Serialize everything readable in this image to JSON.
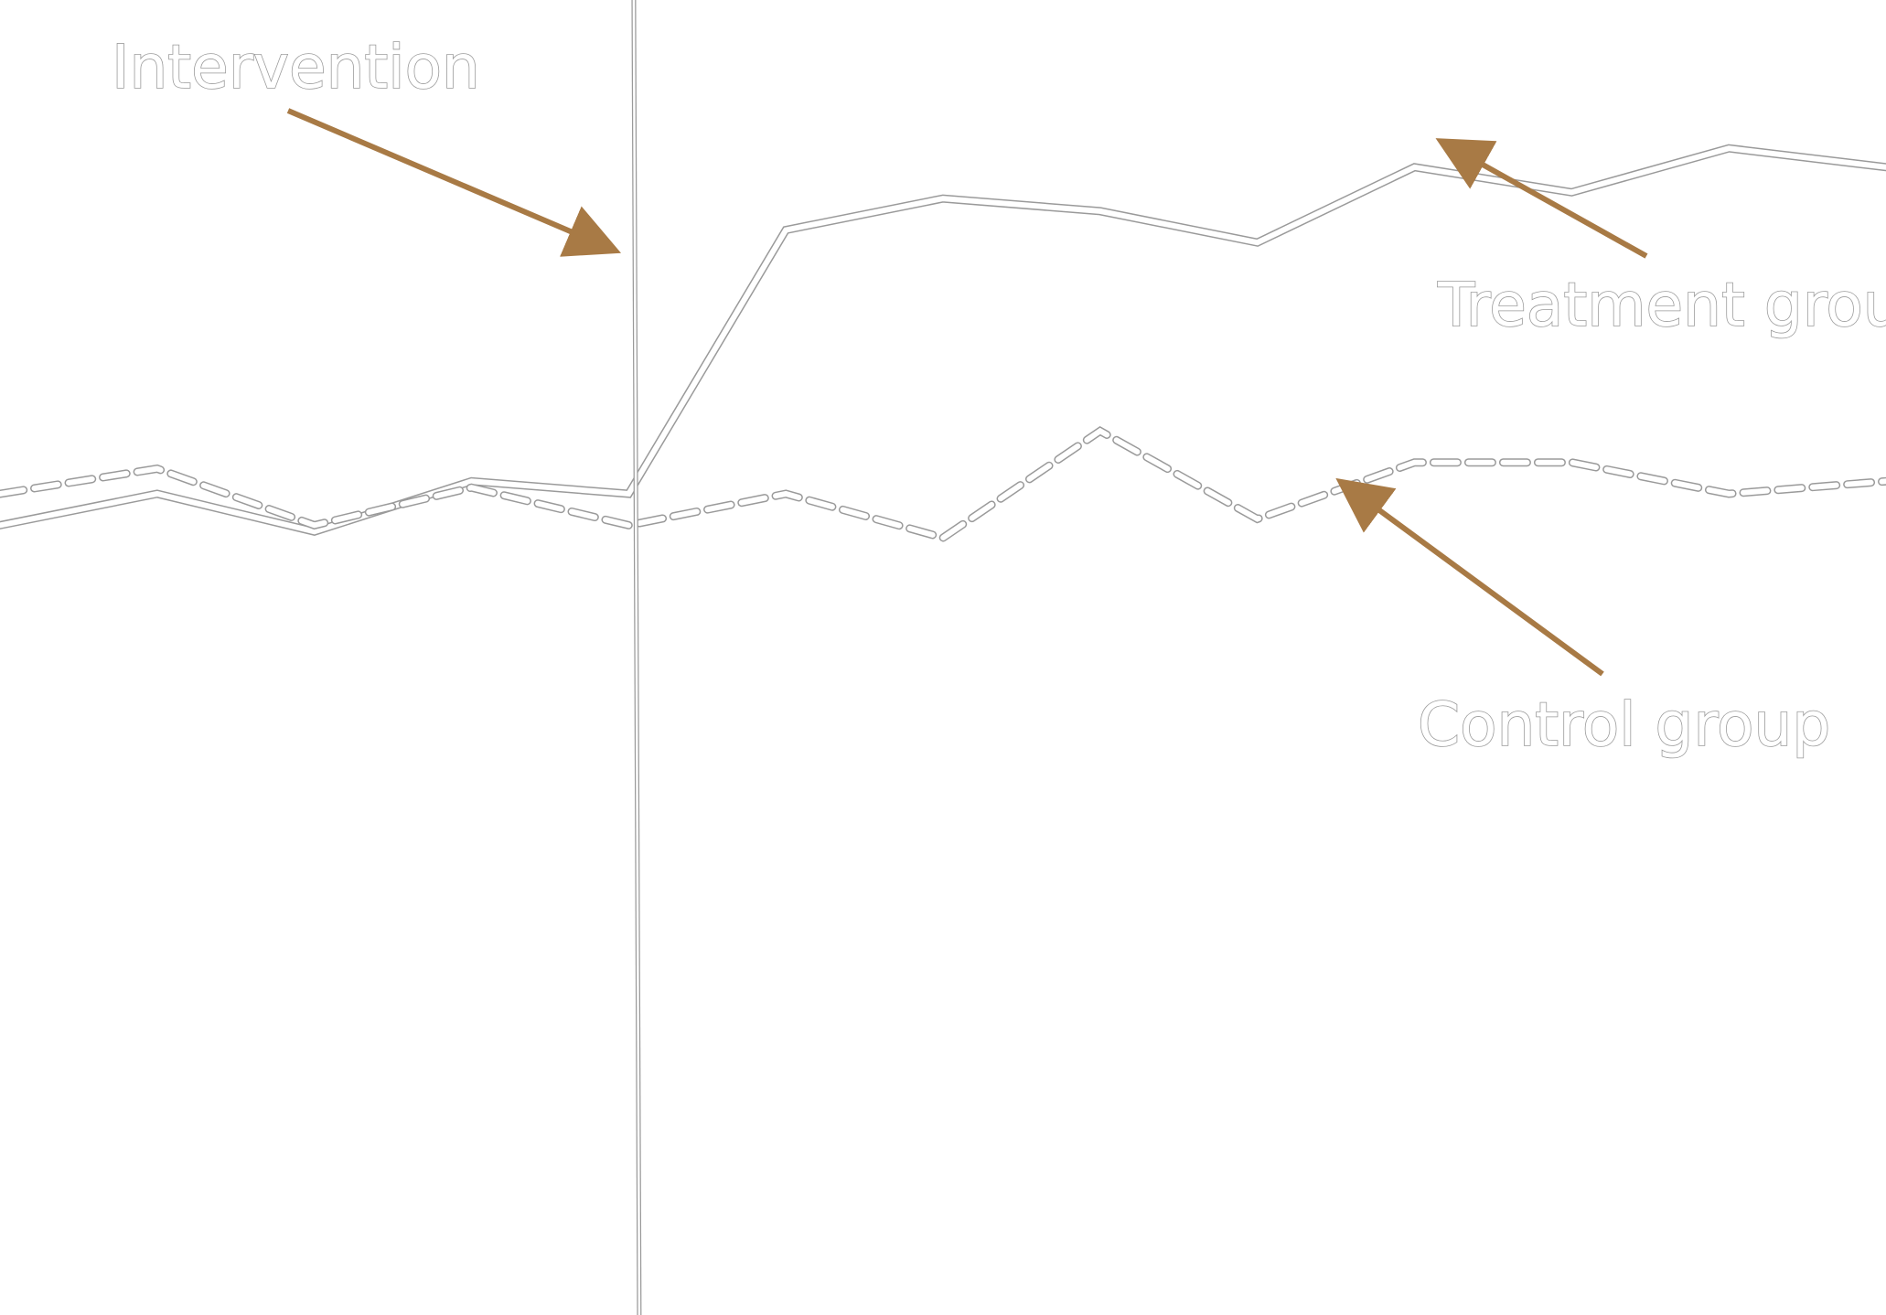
{
  "chart_data": {
    "type": "line",
    "title": "",
    "xlabel": "",
    "ylabel": "",
    "x": [
      0,
      1,
      2,
      3,
      4,
      5,
      6,
      7,
      8,
      9,
      10,
      11,
      12
    ],
    "xlim": [
      0,
      12
    ],
    "ylim": [
      0,
      10
    ],
    "grid": false,
    "intervention_x": 4.05,
    "series": [
      {
        "name": "Treatment group",
        "style": "double-solid",
        "values": [
          6.3,
          6.55,
          6.25,
          6.65,
          6.55,
          8.65,
          8.9,
          8.8,
          8.55,
          9.15,
          8.95,
          9.3,
          9.15
        ]
      },
      {
        "name": "Control group",
        "style": "double-dashed",
        "values": [
          6.55,
          6.75,
          6.3,
          6.6,
          6.3,
          6.55,
          6.2,
          7.05,
          6.35,
          6.8,
          6.8,
          6.55,
          6.65
        ]
      }
    ],
    "annotations": [
      {
        "text": "Intervention",
        "target": "intervention-line"
      },
      {
        "text": "Treatment group",
        "target": "Treatment group"
      },
      {
        "text": "Control group",
        "target": "Control group"
      }
    ]
  },
  "colors": {
    "background": "#ffffff",
    "line_outline": "#9a9a9a",
    "line_fill": "#ffffff",
    "arrow": "#a87a45",
    "text_outline": "#9a9a9a"
  }
}
